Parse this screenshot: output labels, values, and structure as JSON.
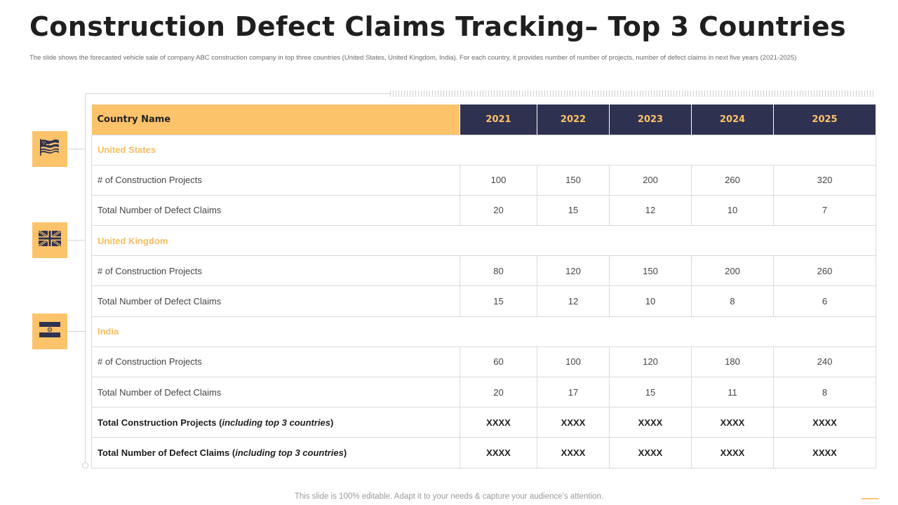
{
  "page": {
    "title": "Construction Defect Claims Tracking– Top 3 Countries",
    "subtitle": "The slide shows the forecasted vehicle sale of company ABC construction company in top three countries (United States, United Kingdom, India).  For each country, it provides number of number of projects, number of defect claims in next five years (2021-2025)",
    "footer": "This slide is 100% editable. Adapt it to your needs & capture your audience’s attention."
  },
  "colors": {
    "accent": "#fdc36a",
    "header_dark": "#2f3150",
    "country_text": "#f6bd5f"
  },
  "icons": [
    "us-flag-icon",
    "uk-flag-icon",
    "india-flag-icon"
  ],
  "table": {
    "header": {
      "country": "Country Name",
      "years": [
        "2021",
        "2022",
        "2023",
        "2024",
        "2025"
      ]
    },
    "countries": [
      {
        "name": "United States",
        "rows": [
          {
            "label": "# of Construction Projects",
            "values": [
              "100",
              "150",
              "200",
              "260",
              "320"
            ]
          },
          {
            "label": "Total Number  of Defect Claims",
            "values": [
              "20",
              "15",
              "12",
              "10",
              "7"
            ]
          }
        ]
      },
      {
        "name": "United Kingdom",
        "rows": [
          {
            "label": "# of Construction Projects",
            "values": [
              "80",
              "120",
              "150",
              "200",
              "260"
            ]
          },
          {
            "label": "Total Number  of Defect Claims",
            "values": [
              "15",
              "12",
              "10",
              "8",
              "6"
            ]
          }
        ]
      },
      {
        "name": "India",
        "rows": [
          {
            "label": "# of Construction Projects",
            "values": [
              "60",
              "100",
              "120",
              "180",
              "240"
            ]
          },
          {
            "label": "Total Number  of Defect Claims",
            "values": [
              "20",
              "17",
              "15",
              "11",
              "8"
            ]
          }
        ]
      }
    ],
    "totals": [
      {
        "label_main": "Total Construction  Projects",
        "label_italic": "including top 3 countries",
        "values": [
          "XXXX",
          "XXXX",
          "XXXX",
          "XXXX",
          "XXXX"
        ]
      },
      {
        "label_main": "Total Number of Defect Claims",
        "label_italic": "including top 3 countries",
        "values": [
          "XXXX",
          "XXXX",
          "XXXX",
          "XXXX",
          "XXXX"
        ]
      }
    ]
  }
}
